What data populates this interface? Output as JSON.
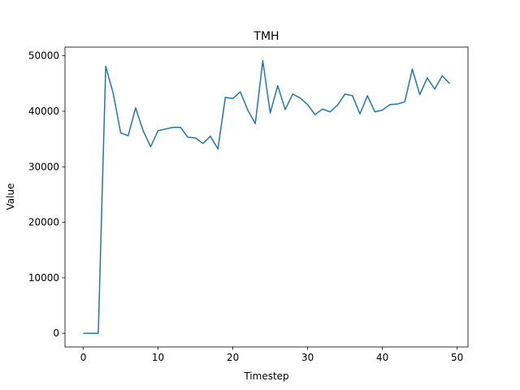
{
  "chart_data": {
    "type": "line",
    "title": "TMH",
    "xlabel": "Timestep",
    "ylabel": "Value",
    "xlim": [
      -2.45,
      51.45
    ],
    "ylim": [
      -2455,
      51555
    ],
    "xticks": [
      0,
      10,
      20,
      30,
      40,
      50
    ],
    "yticks": [
      0,
      10000,
      20000,
      30000,
      40000,
      50000
    ],
    "xtick_labels": [
      "0",
      "10",
      "20",
      "30",
      "40",
      "50"
    ],
    "ytick_labels": [
      "0",
      "10000",
      "20000",
      "30000",
      "40000",
      "50000"
    ],
    "grid": false,
    "legend": "none",
    "series": [
      {
        "color": "#1f77b4",
        "x": [
          0,
          1,
          2,
          3,
          4,
          5,
          6,
          7,
          8,
          9,
          10,
          11,
          12,
          13,
          14,
          15,
          16,
          17,
          18,
          19,
          20,
          21,
          22,
          23,
          24,
          25,
          26,
          27,
          28,
          29,
          30,
          31,
          32,
          33,
          34,
          35,
          36,
          37,
          38,
          39,
          40,
          41,
          42,
          43,
          44,
          45,
          46,
          47,
          48,
          49
        ],
        "values": [
          0,
          0,
          0,
          48100,
          43200,
          36100,
          35600,
          40600,
          36500,
          33600,
          36500,
          36800,
          37100,
          37100,
          35300,
          35200,
          34200,
          35500,
          33200,
          42500,
          42300,
          43500,
          40200,
          37800,
          49100,
          39700,
          44600,
          40300,
          43100,
          42400,
          41200,
          39400,
          40400,
          39900,
          41100,
          43100,
          42800,
          39500,
          42800,
          39900,
          40200,
          41200,
          41300,
          41700,
          47600,
          43000,
          46000,
          44000,
          46400,
          45000
        ]
      }
    ]
  }
}
